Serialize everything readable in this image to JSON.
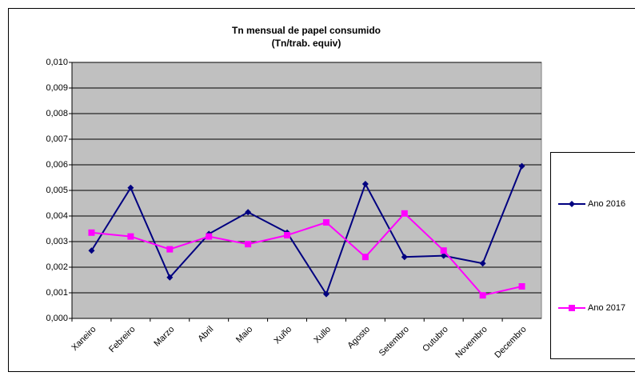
{
  "chart_data": {
    "type": "line",
    "title": "Tn mensual de papel consumido",
    "subtitle": "(Tn/trab. equiv)",
    "categories": [
      "Xaneiro",
      "Febreiro",
      "Marzo",
      "Abril",
      "Maio",
      "Xuño",
      "Xullo",
      "Agosto",
      "Setembro",
      "Outubro",
      "Novembro",
      "Decembro"
    ],
    "series": [
      {
        "name": "Ano 2016",
        "color": "#000080",
        "marker": "diamond",
        "values": [
          0.00265,
          0.0051,
          0.0016,
          0.0033,
          0.00415,
          0.00335,
          0.00095,
          0.00525,
          0.0024,
          0.00245,
          0.00215,
          0.00595
        ]
      },
      {
        "name": "Ano 2017",
        "color": "#ff00ff",
        "marker": "square",
        "values": [
          0.00335,
          0.0032,
          0.0027,
          0.0032,
          0.0029,
          0.00325,
          0.00375,
          0.0024,
          0.0041,
          0.00265,
          0.0009,
          0.00125
        ]
      }
    ],
    "ylim": [
      0,
      0.01
    ],
    "yticks": [
      {
        "value": 0,
        "label": "0,000"
      },
      {
        "value": 0.001,
        "label": "0,001"
      },
      {
        "value": 0.002,
        "label": "0,002"
      },
      {
        "value": 0.003,
        "label": "0,003"
      },
      {
        "value": 0.004,
        "label": "0,004"
      },
      {
        "value": 0.005,
        "label": "0,005"
      },
      {
        "value": 0.006,
        "label": "0,006"
      },
      {
        "value": 0.007,
        "label": "0,007"
      },
      {
        "value": 0.008,
        "label": "0,008"
      },
      {
        "value": 0.009,
        "label": "0,009"
      },
      {
        "value": 0.01,
        "label": "0,010"
      }
    ],
    "grid": true,
    "plot_background": "#c0c0c0",
    "legend": "right"
  }
}
